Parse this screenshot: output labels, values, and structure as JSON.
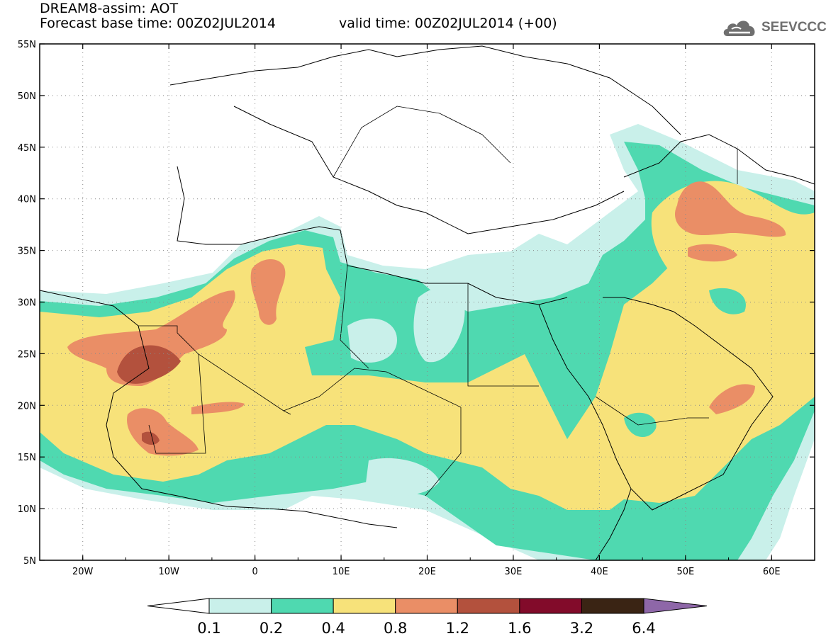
{
  "title": {
    "line1": "DREAM8-assim: AOT",
    "line2": "Forecast base time: 00Z02JUL2014",
    "line2b": "valid time: 00Z02JUL2014 (+00)"
  },
  "logo": {
    "text": "SEEVCCC",
    "icon": "cloud-icon",
    "color": "#6f6f6f"
  },
  "map": {
    "lat_labels": [
      "55N",
      "50N",
      "45N",
      "40N",
      "35N",
      "30N",
      "25N",
      "20N",
      "15N",
      "10N",
      "5N"
    ],
    "lon_labels": [
      "20W",
      "10W",
      "0",
      "10E",
      "20E",
      "30E",
      "40E",
      "50E",
      "60E"
    ],
    "lat_range": [
      5,
      55
    ],
    "lon_range": [
      -25,
      65
    ],
    "grid": "dotted"
  },
  "colorbar": {
    "labels": [
      "0.1",
      "0.2",
      "0.4",
      "0.8",
      "1.2",
      "1.6",
      "3.2",
      "6.4"
    ],
    "colors": [
      "#c9f0ea",
      "#4fd9b0",
      "#f7e27a",
      "#ea8e66",
      "#b3513d",
      "#820b2a",
      "#3a2414",
      "#8e67a8"
    ],
    "low_extend_color": "#ffffff"
  }
}
